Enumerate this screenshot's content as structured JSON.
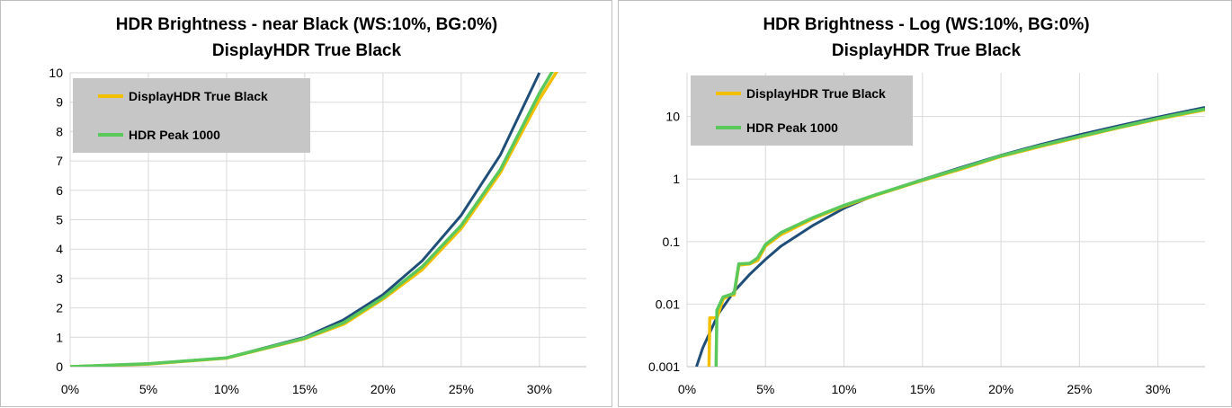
{
  "chart_data": [
    {
      "type": "line",
      "title": "HDR Brightness - near Black (WS:10%, BG:0%)",
      "subtitle": "DisplayHDR True Black",
      "xlabel": "",
      "ylabel": "",
      "xlim": [
        0,
        33
      ],
      "ylim": [
        0,
        10
      ],
      "yscale": "linear",
      "x_ticks": [
        0,
        5,
        10,
        15,
        20,
        25,
        30
      ],
      "x_tick_labels": [
        "0%",
        "5%",
        "10%",
        "15%",
        "20%",
        "25%",
        "30%"
      ],
      "y_ticks": [
        0,
        1,
        2,
        3,
        4,
        5,
        6,
        7,
        8,
        9,
        10
      ],
      "y_tick_labels": [
        "0",
        "1",
        "2",
        "3",
        "4",
        "5",
        "6",
        "7",
        "8",
        "9",
        "10"
      ],
      "grid": true,
      "legend_position": "top-left",
      "series": [
        {
          "name": "",
          "color": "#1f4e79",
          "legend": false,
          "x": [
            0,
            5,
            10,
            15,
            17.5,
            20,
            22.5,
            25,
            27.5,
            30
          ],
          "y": [
            0,
            0.1,
            0.3,
            1.0,
            1.6,
            2.45,
            3.6,
            5.15,
            7.2,
            10.0
          ]
        },
        {
          "name": "DisplayHDR True Black",
          "color": "#f2c000",
          "legend": true,
          "x": [
            0,
            5,
            10,
            15,
            17.5,
            20,
            22.5,
            25,
            27.5,
            30,
            31.3
          ],
          "y": [
            0,
            0.09,
            0.29,
            0.95,
            1.45,
            2.3,
            3.3,
            4.7,
            6.6,
            9.1,
            10.2
          ]
        },
        {
          "name": "HDR Peak 1000",
          "color": "#5ac85a",
          "legend": true,
          "x": [
            0,
            5,
            10,
            15,
            17.5,
            20,
            22.5,
            25,
            27.5,
            30,
            31.0
          ],
          "y": [
            0,
            0.1,
            0.3,
            0.97,
            1.5,
            2.35,
            3.4,
            4.8,
            6.7,
            9.3,
            10.2
          ]
        }
      ]
    },
    {
      "type": "line",
      "title": "HDR Brightness - Log (WS:10%, BG:0%)",
      "subtitle": "DisplayHDR True Black",
      "xlabel": "",
      "ylabel": "",
      "xlim": [
        0,
        33
      ],
      "ylim": [
        0.001,
        50
      ],
      "yscale": "log",
      "x_ticks": [
        0,
        5,
        10,
        15,
        20,
        25,
        30
      ],
      "x_tick_labels": [
        "0%",
        "5%",
        "10%",
        "15%",
        "20%",
        "25%",
        "30%"
      ],
      "y_ticks": [
        0.001,
        0.01,
        0.1,
        1,
        10
      ],
      "y_tick_labels": [
        "0.001",
        "0.01",
        "0.1",
        "1",
        "10"
      ],
      "grid": true,
      "legend_position": "top-left",
      "series": [
        {
          "name": "",
          "color": "#1f4e79",
          "legend": false,
          "x": [
            0.6,
            1.0,
            2.0,
            3.0,
            4.0,
            5.0,
            6.0,
            8.0,
            10.0,
            12.0,
            15.0,
            17.5,
            20.0,
            22.5,
            25.0,
            27.5,
            30.0,
            33.0
          ],
          "y": [
            0.001,
            0.002,
            0.007,
            0.016,
            0.03,
            0.052,
            0.085,
            0.18,
            0.34,
            0.56,
            0.98,
            1.55,
            2.4,
            3.55,
            5.1,
            7.1,
            9.8,
            14.0
          ]
        },
        {
          "name": "DisplayHDR True Black",
          "color": "#f2c000",
          "legend": true,
          "x": [
            1.4,
            1.45,
            1.9,
            2.3,
            2.7,
            3.0,
            3.3,
            4.0,
            4.5,
            5.0,
            6.0,
            8.0,
            10.0,
            12.0,
            15.0,
            17.5,
            20.0,
            22.5,
            25.0,
            27.5,
            30.0,
            33.0
          ],
          "y": [
            0.001,
            0.006,
            0.006,
            0.012,
            0.014,
            0.014,
            0.042,
            0.044,
            0.05,
            0.085,
            0.13,
            0.23,
            0.37,
            0.55,
            0.95,
            1.45,
            2.3,
            3.3,
            4.7,
            6.6,
            9.1,
            12.8
          ]
        },
        {
          "name": "HDR Peak 1000",
          "color": "#5ac85a",
          "legend": true,
          "x": [
            1.85,
            1.9,
            2.3,
            2.7,
            3.0,
            3.3,
            4.0,
            4.5,
            5.0,
            6.0,
            8.0,
            10.0,
            12.0,
            15.0,
            17.5,
            20.0,
            22.5,
            25.0,
            27.5,
            30.0,
            33.0
          ],
          "y": [
            0.001,
            0.008,
            0.013,
            0.014,
            0.015,
            0.044,
            0.045,
            0.055,
            0.09,
            0.14,
            0.24,
            0.38,
            0.56,
            0.97,
            1.5,
            2.35,
            3.4,
            4.8,
            6.7,
            9.3,
            13.2
          ]
        }
      ]
    }
  ]
}
